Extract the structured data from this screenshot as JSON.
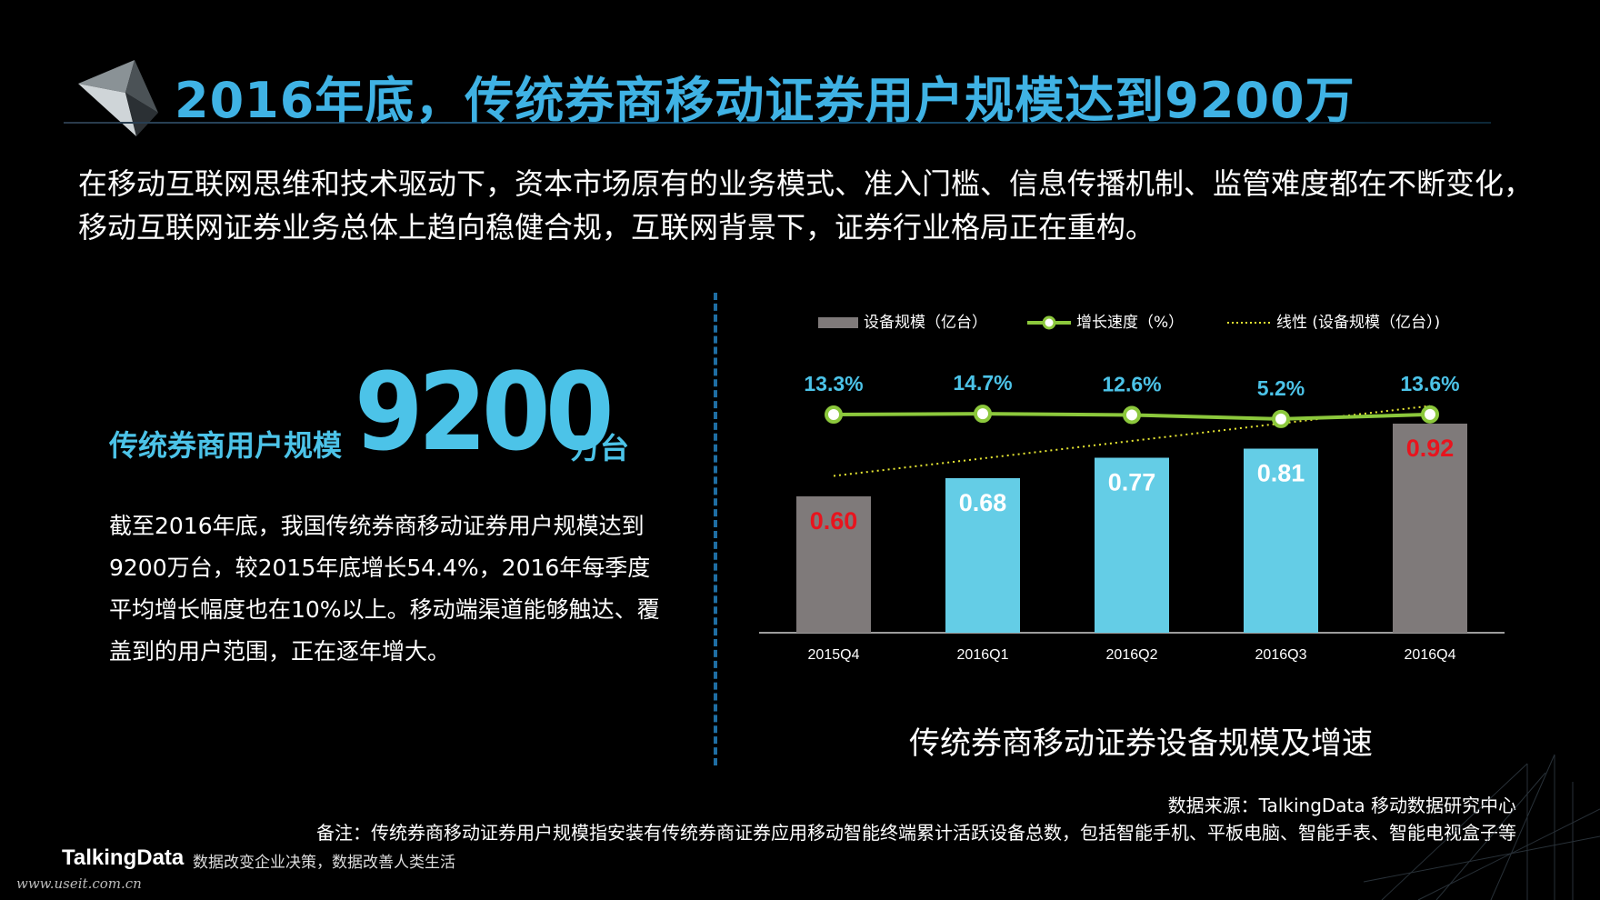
{
  "header": {
    "title": "2016年底，传统券商移动证券用户规模达到9200万"
  },
  "intro": "在移动互联网思维和技术驱动下，资本市场原有的业务模式、准入门槛、信息传播机制、监管难度都在不断变化，移动互联网证券业务总体上趋向稳健合规，互联网背景下，证券行业格局正在重构。",
  "kpi": {
    "label": "传统券商用户规模",
    "value": "9200",
    "unit": "万台"
  },
  "description": "截至2016年底，我国传统券商移动证券用户规模达到9200万台，较2015年底增长54.4%，2016年每季度平均增长幅度也在10%以上。移动端渠道能够触达、覆盖到的用户范围，正在逐年增大。",
  "chart_data": {
    "type": "bar",
    "categories": [
      "2015Q4",
      "2016Q1",
      "2016Q2",
      "2016Q3",
      "2016Q4"
    ],
    "series": [
      {
        "name": "设备规模（亿台）",
        "type": "bar",
        "values": [
          0.6,
          0.68,
          0.77,
          0.81,
          0.92
        ],
        "labels": [
          "0.60",
          "0.68",
          "0.77",
          "0.81",
          "0.92"
        ],
        "colors": [
          "#7f7a7a",
          "#64cde6",
          "#64cde6",
          "#64cde6",
          "#7f7a7a"
        ],
        "label_colors": [
          "#e8141e",
          "#ffffff",
          "#ffffff",
          "#ffffff",
          "#e8141e"
        ]
      },
      {
        "name": "增长速度（%）",
        "type": "line",
        "values": [
          13.3,
          14.7,
          12.6,
          5.2,
          13.6
        ],
        "labels": [
          "13.3%",
          "14.7%",
          "12.6%",
          "5.2%",
          "13.6%"
        ],
        "color": "#8cc83c"
      },
      {
        "name": "线性 (设备规模（亿台）)",
        "type": "trendline",
        "color": "#e6e632"
      }
    ],
    "legend": [
      "设备规模（亿台）",
      "增长速度（%）",
      "线性 (设备规模（亿台）)"
    ],
    "legend_position": "top",
    "ylim": [
      0,
      1.2
    ],
    "grid": false,
    "title": "传统券商移动证券设备规模及增速"
  },
  "footer": {
    "source": "数据来源：TalkingData 移动数据研究中心",
    "note": "备注：传统券商移动证券用户规模指安装有传统券商证券应用移动智能终端累计活跃设备总数，包括智能手机、平板电脑、智能手表、智能电视盒子等",
    "brand": "TalkingData",
    "slogan": "数据改变企业决策，数据改善人类生活",
    "watermark": "www.useit.com.cn"
  }
}
